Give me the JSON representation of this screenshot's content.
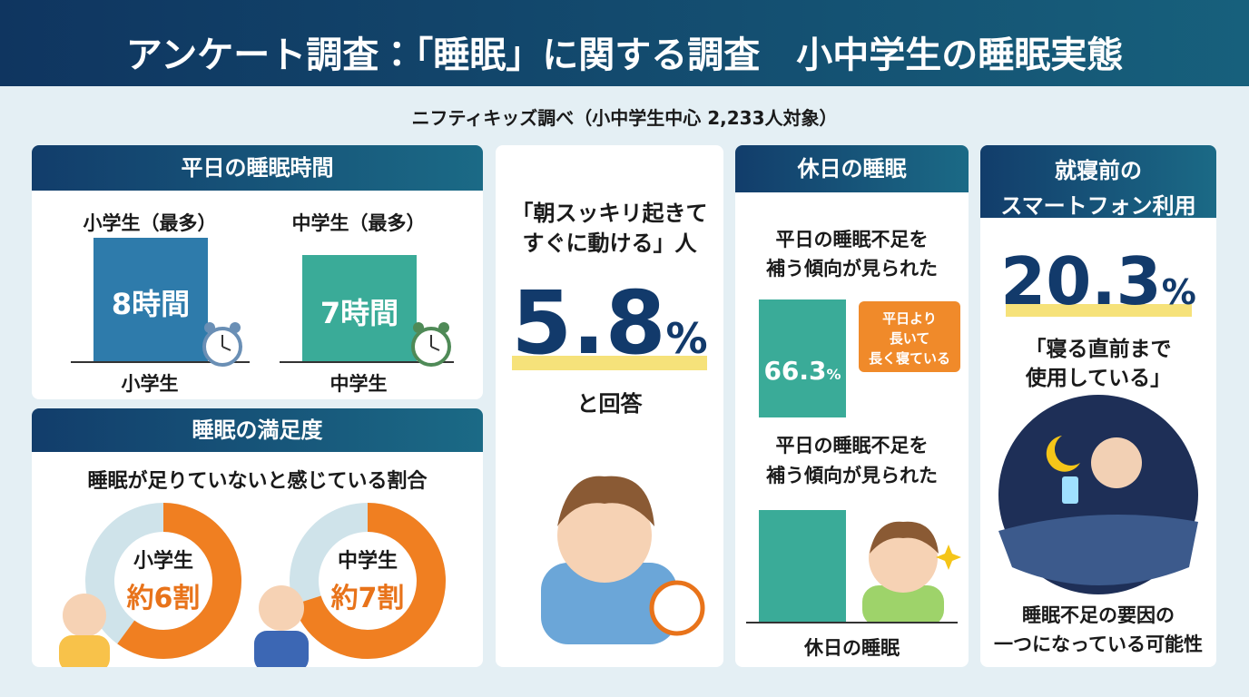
{
  "header": {
    "title": "アンケート調査：「睡眠」に関する調査　小中学生の睡眠実態",
    "subtitle": "ニフティキッズ調べ（小中学生中心 2,233人対象）"
  },
  "weekday": {
    "title": "平日の睡眠時間",
    "items": [
      {
        "label": "小学生（最多）",
        "value": "8時間",
        "axis": "小学生"
      },
      {
        "label": "中学生（最多）",
        "value": "7時間",
        "axis": "中学生"
      }
    ]
  },
  "satisfaction": {
    "title": "睡眠の満足度",
    "subtitle": "睡眠が足りていないと感じている割合",
    "donuts": [
      {
        "group": "小学生",
        "value": "約6割"
      },
      {
        "group": "中学生",
        "value": "約7割"
      }
    ]
  },
  "morning": {
    "quote": [
      "「朝スッキリ起きて",
      "すぐに動ける」人"
    ],
    "value": "5.8",
    "unit": "%",
    "note": "と回答"
  },
  "holiday": {
    "title": "休日の睡眠",
    "top": [
      "平日の睡眠不足を",
      "補う傾向が見られた"
    ],
    "bar_value": "66.3",
    "bar_unit": "%",
    "callout": [
      "平日より",
      "長いて",
      "長く寝ている"
    ],
    "middle": [
      "平日の睡眠不足を",
      "補う傾向が見られた"
    ],
    "axis": "休日の睡眠"
  },
  "smartphone": {
    "title": [
      "就寝前の",
      "スマートフォン利用"
    ],
    "value": "20.3",
    "unit": "%",
    "quote": [
      "「寝る直前まで",
      "使用している」"
    ],
    "footer": [
      "睡眠不足の要因の",
      "一つになっている可能性"
    ]
  }
}
